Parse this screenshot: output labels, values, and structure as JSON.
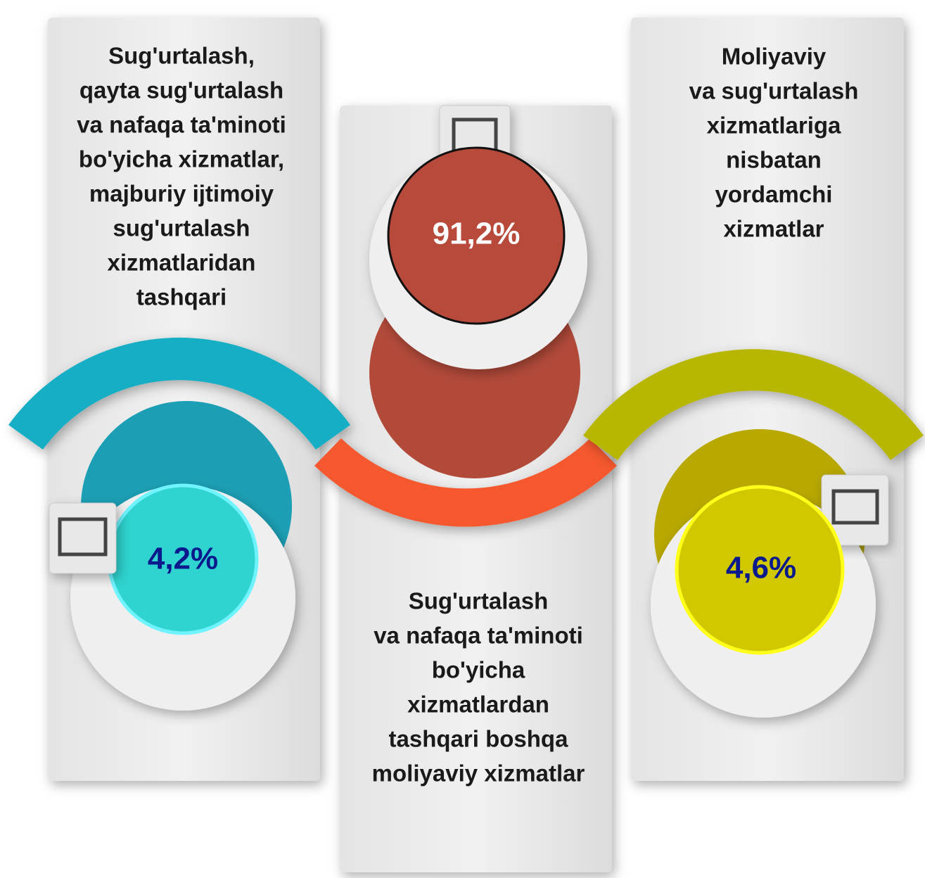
{
  "panels": [
    {
      "label": [
        "Sug'urtalash,",
        "qayta sug'urtalash",
        "va nafaqa ta'minoti",
        "bo'yicha xizmatlar,",
        "majburiy ijtimoiy",
        "sug'urtalash",
        "xizmatlaridan",
        "tashqari"
      ],
      "value": "4,2%"
    },
    {
      "label": [
        "Sug'urtalash",
        "va nafaqa ta'minoti",
        "bo'yicha",
        "xizmatlardan",
        "tashqari boshqa",
        "moliyaviy xizmatlar"
      ],
      "value": "91,2%"
    },
    {
      "label": [
        "Moliyaviy",
        "va sug'urtalash",
        "xizmatlariga",
        "nisbatan",
        "yordamchi",
        "xizmatlar"
      ],
      "value": "4,6%"
    }
  ]
}
